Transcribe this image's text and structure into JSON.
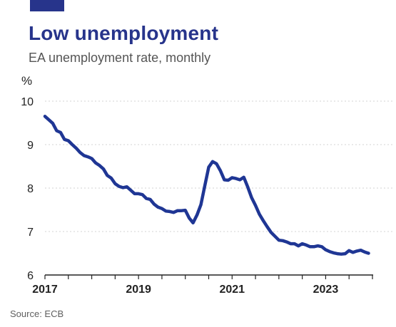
{
  "header": {
    "title": "Low unemployment",
    "subtitle": "EA unemployment rate, monthly"
  },
  "footer": {
    "source": "Source: ECB"
  },
  "colors": {
    "brand": "#27348b",
    "line": "#1f3694",
    "grid": "#d3d3d3",
    "axis": "#222222"
  },
  "chart_data": {
    "type": "line",
    "title": "Low unemployment",
    "subtitle": "EA unemployment rate, monthly",
    "xlabel": "",
    "ylabel": "%",
    "ylim": [
      6,
      10
    ],
    "xlim": [
      "2017-01",
      "2024-01"
    ],
    "y_ticks": [
      "6",
      "7",
      "8",
      "9",
      "10"
    ],
    "x_ticks": [
      {
        "label": "2017",
        "date": "2017-01"
      },
      {
        "label": "2019",
        "date": "2019-01"
      },
      {
        "label": "2021",
        "date": "2021-01"
      },
      {
        "label": "2023",
        "date": "2023-01"
      }
    ],
    "grid": true,
    "series": [
      {
        "x": [
          "2017-01",
          "2017-02",
          "2017-03",
          "2017-04",
          "2017-05",
          "2017-06",
          "2017-07",
          "2017-08",
          "2017-09",
          "2017-10",
          "2017-11",
          "2017-12",
          "2018-01",
          "2018-02",
          "2018-03",
          "2018-04",
          "2018-05",
          "2018-06",
          "2018-07",
          "2018-08",
          "2018-09",
          "2018-10",
          "2018-11",
          "2018-12",
          "2019-01",
          "2019-02",
          "2019-03",
          "2019-04",
          "2019-05",
          "2019-06",
          "2019-07",
          "2019-08",
          "2019-09",
          "2019-10",
          "2019-11",
          "2019-12",
          "2020-01",
          "2020-02",
          "2020-03",
          "2020-04",
          "2020-05",
          "2020-06",
          "2020-07",
          "2020-08",
          "2020-09",
          "2020-10",
          "2020-11",
          "2020-12",
          "2021-01",
          "2021-02",
          "2021-03",
          "2021-04",
          "2021-05",
          "2021-06",
          "2021-07",
          "2021-08",
          "2021-09",
          "2021-10",
          "2021-11",
          "2021-12",
          "2022-01",
          "2022-02",
          "2022-03",
          "2022-04",
          "2022-05",
          "2022-06",
          "2022-07",
          "2022-08",
          "2022-09",
          "2022-10",
          "2022-11",
          "2022-12",
          "2023-01",
          "2023-02",
          "2023-03",
          "2023-04",
          "2023-05",
          "2023-06",
          "2023-07",
          "2023-08",
          "2023-09",
          "2023-10",
          "2023-11",
          "2023-12"
        ],
        "values": [
          9.65,
          9.57,
          9.49,
          9.32,
          9.28,
          9.12,
          9.09,
          9.0,
          8.92,
          8.82,
          8.75,
          8.72,
          8.68,
          8.58,
          8.52,
          8.44,
          8.29,
          8.23,
          8.1,
          8.04,
          8.01,
          8.03,
          7.95,
          7.87,
          7.87,
          7.85,
          7.76,
          7.74,
          7.63,
          7.56,
          7.53,
          7.47,
          7.46,
          7.44,
          7.48,
          7.48,
          7.49,
          7.31,
          7.2,
          7.38,
          7.62,
          8.05,
          8.48,
          8.61,
          8.56,
          8.4,
          8.19,
          8.18,
          8.24,
          8.22,
          8.19,
          8.25,
          8.03,
          7.78,
          7.6,
          7.4,
          7.25,
          7.11,
          6.98,
          6.89,
          6.8,
          6.79,
          6.76,
          6.72,
          6.72,
          6.67,
          6.72,
          6.69,
          6.65,
          6.65,
          6.67,
          6.65,
          6.58,
          6.54,
          6.51,
          6.49,
          6.48,
          6.49,
          6.56,
          6.52,
          6.55,
          6.57,
          6.53,
          6.5
        ]
      }
    ]
  }
}
